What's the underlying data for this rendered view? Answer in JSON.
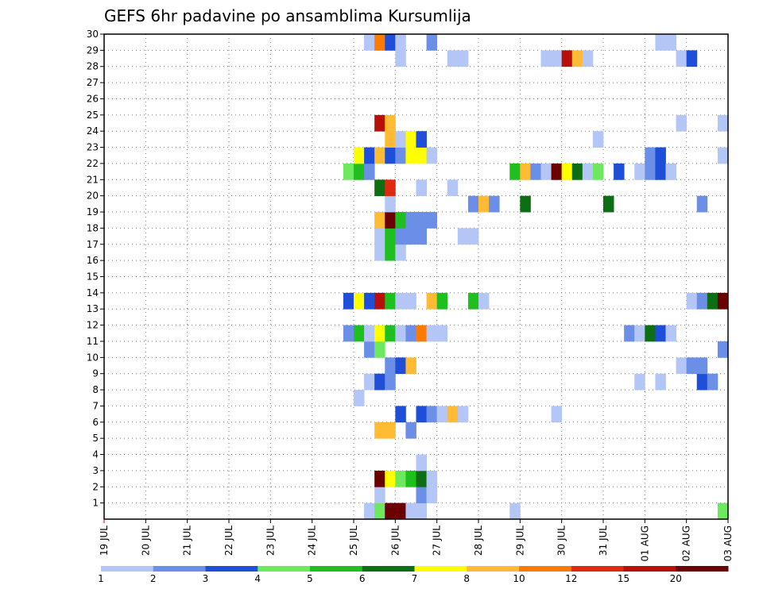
{
  "chart_data": {
    "type": "heatmap",
    "title": "GEFS 6hr padavine po ansamblima Kursumlija",
    "xlabel": "",
    "ylabel": "",
    "x_tick_labels": [
      "19 JUL",
      "20 JUL",
      "21 JUL",
      "22 JUL",
      "23 JUL",
      "24 JUL",
      "25 JUL",
      "26 JUL",
      "27 JUL",
      "28 JUL",
      "29 JUL",
      "30 JUL",
      "31 JUL",
      "01 AUG",
      "02 AUG",
      "03 AUG"
    ],
    "x_range": [
      0,
      15
    ],
    "x_step": 0.25,
    "y_range": [
      0,
      30
    ],
    "y_tick_labels": [
      "1",
      "2",
      "3",
      "4",
      "5",
      "6",
      "7",
      "8",
      "9",
      "10",
      "11",
      "12",
      "13",
      "14",
      "15",
      "16",
      "17",
      "18",
      "19",
      "20",
      "21",
      "22",
      "23",
      "24",
      "25",
      "26",
      "27",
      "28",
      "29",
      "30"
    ],
    "grid": true,
    "colorbar": {
      "labels": [
        "1",
        "2",
        "3",
        "4",
        "5",
        "6",
        "7",
        "8",
        "10",
        "12",
        "15",
        "20"
      ],
      "colors": [
        "#b4c6f6",
        "#6b8fe6",
        "#1f4fd8",
        "#6ee85e",
        "#1fbf1f",
        "#0e6e14",
        "#ffff00",
        "#ffbb33",
        "#ff7a00",
        "#e02a10",
        "#b80f0a",
        "#6b0000"
      ]
    },
    "cells": [
      [
        6.25,
        0,
        0
      ],
      [
        6.5,
        0,
        3
      ],
      [
        6.75,
        0,
        11
      ],
      [
        7.0,
        0,
        11
      ],
      [
        7.25,
        0,
        0
      ],
      [
        7.5,
        0,
        0
      ],
      [
        9.75,
        0,
        0
      ],
      [
        14.75,
        0,
        3
      ],
      [
        6.5,
        1,
        0
      ],
      [
        7.5,
        1,
        1
      ],
      [
        7.75,
        1,
        0
      ],
      [
        6.5,
        2,
        11
      ],
      [
        6.75,
        2,
        6
      ],
      [
        7.0,
        2,
        3
      ],
      [
        7.25,
        2,
        4
      ],
      [
        7.5,
        2,
        5
      ],
      [
        7.75,
        2,
        0
      ],
      [
        7.5,
        3,
        0
      ],
      [
        6.5,
        5,
        7
      ],
      [
        6.75,
        5,
        7
      ],
      [
        7.25,
        5,
        1
      ],
      [
        7.0,
        6,
        2
      ],
      [
        7.5,
        6,
        2
      ],
      [
        7.75,
        6,
        1
      ],
      [
        8.0,
        6,
        0
      ],
      [
        8.25,
        6,
        7
      ],
      [
        8.5,
        6,
        0
      ],
      [
        10.75,
        6,
        0
      ],
      [
        6.0,
        7,
        0
      ],
      [
        6.25,
        8,
        0
      ],
      [
        6.5,
        8,
        2
      ],
      [
        6.75,
        8,
        1
      ],
      [
        12.75,
        8,
        0
      ],
      [
        13.25,
        8,
        0
      ],
      [
        14.25,
        8,
        2
      ],
      [
        14.5,
        8,
        1
      ],
      [
        6.75,
        9,
        1
      ],
      [
        7.0,
        9,
        2
      ],
      [
        7.25,
        9,
        7
      ],
      [
        13.75,
        9,
        0
      ],
      [
        14.0,
        9,
        1
      ],
      [
        14.25,
        9,
        1
      ],
      [
        6.25,
        10,
        1
      ],
      [
        6.5,
        10,
        3
      ],
      [
        14.75,
        10,
        1
      ],
      [
        5.75,
        11,
        1
      ],
      [
        6.0,
        11,
        4
      ],
      [
        6.25,
        11,
        0
      ],
      [
        6.5,
        11,
        6
      ],
      [
        6.75,
        11,
        4
      ],
      [
        7.0,
        11,
        0
      ],
      [
        7.25,
        11,
        1
      ],
      [
        7.5,
        11,
        8
      ],
      [
        7.75,
        11,
        0
      ],
      [
        8.0,
        11,
        0
      ],
      [
        12.5,
        11,
        1
      ],
      [
        12.75,
        11,
        0
      ],
      [
        13.0,
        11,
        5
      ],
      [
        13.25,
        11,
        2
      ],
      [
        13.5,
        11,
        0
      ],
      [
        5.75,
        13,
        2
      ],
      [
        6.0,
        13,
        6
      ],
      [
        6.25,
        13,
        2
      ],
      [
        6.5,
        13,
        10
      ],
      [
        6.75,
        13,
        4
      ],
      [
        7.0,
        13,
        0
      ],
      [
        7.25,
        13,
        0
      ],
      [
        7.75,
        13,
        7
      ],
      [
        8.0,
        13,
        4
      ],
      [
        8.75,
        13,
        4
      ],
      [
        9.0,
        13,
        0
      ],
      [
        14.0,
        13,
        0
      ],
      [
        14.25,
        13,
        1
      ],
      [
        14.5,
        13,
        5
      ],
      [
        14.75,
        13,
        11
      ],
      [
        6.5,
        16,
        0
      ],
      [
        6.75,
        16,
        4
      ],
      [
        7.0,
        16,
        0
      ],
      [
        6.5,
        17,
        0
      ],
      [
        6.75,
        17,
        4
      ],
      [
        7.0,
        17,
        1
      ],
      [
        7.25,
        17,
        1
      ],
      [
        7.5,
        17,
        1
      ],
      [
        8.5,
        17,
        0
      ],
      [
        8.75,
        17,
        0
      ],
      [
        6.5,
        18,
        7
      ],
      [
        6.75,
        18,
        11
      ],
      [
        7.0,
        18,
        4
      ],
      [
        7.25,
        18,
        1
      ],
      [
        7.5,
        18,
        1
      ],
      [
        7.75,
        18,
        1
      ],
      [
        6.75,
        19,
        0
      ],
      [
        8.75,
        19,
        1
      ],
      [
        9.0,
        19,
        7
      ],
      [
        9.25,
        19,
        1
      ],
      [
        10.0,
        19,
        5
      ],
      [
        12.0,
        19,
        5
      ],
      [
        14.25,
        19,
        1
      ],
      [
        6.5,
        20,
        5
      ],
      [
        6.75,
        20,
        9
      ],
      [
        7.5,
        20,
        0
      ],
      [
        8.25,
        20,
        0
      ],
      [
        5.75,
        21,
        3
      ],
      [
        6.0,
        21,
        4
      ],
      [
        6.25,
        21,
        1
      ],
      [
        9.75,
        21,
        4
      ],
      [
        10.0,
        21,
        7
      ],
      [
        10.25,
        21,
        1
      ],
      [
        10.5,
        21,
        0
      ],
      [
        10.75,
        21,
        11
      ],
      [
        11.0,
        21,
        6
      ],
      [
        11.25,
        21,
        5
      ],
      [
        11.5,
        21,
        0
      ],
      [
        11.75,
        21,
        3
      ],
      [
        12.25,
        21,
        2
      ],
      [
        12.75,
        21,
        0
      ],
      [
        13.0,
        21,
        1
      ],
      [
        13.25,
        21,
        2
      ],
      [
        13.5,
        21,
        0
      ],
      [
        6.0,
        22,
        6
      ],
      [
        6.25,
        22,
        2
      ],
      [
        6.5,
        22,
        7
      ],
      [
        6.75,
        22,
        2
      ],
      [
        7.0,
        22,
        1
      ],
      [
        7.25,
        22,
        6
      ],
      [
        7.5,
        22,
        6
      ],
      [
        7.75,
        22,
        0
      ],
      [
        13.0,
        22,
        1
      ],
      [
        13.25,
        22,
        2
      ],
      [
        14.75,
        22,
        0
      ],
      [
        6.75,
        23,
        7
      ],
      [
        7.0,
        23,
        0
      ],
      [
        7.25,
        23,
        6
      ],
      [
        7.5,
        23,
        2
      ],
      [
        11.75,
        23,
        0
      ],
      [
        6.5,
        24,
        10
      ],
      [
        6.75,
        24,
        7
      ],
      [
        13.75,
        24,
        0
      ],
      [
        14.75,
        24,
        0
      ],
      [
        7.0,
        28,
        0
      ],
      [
        8.5,
        28,
        0
      ],
      [
        8.25,
        28,
        0
      ],
      [
        10.5,
        28,
        0
      ],
      [
        10.75,
        28,
        0
      ],
      [
        11.0,
        28,
        10
      ],
      [
        11.25,
        28,
        7
      ],
      [
        11.5,
        28,
        0
      ],
      [
        13.75,
        28,
        0
      ],
      [
        14.0,
        28,
        2
      ],
      [
        6.25,
        29,
        0
      ],
      [
        6.5,
        29,
        8
      ],
      [
        6.75,
        29,
        2
      ],
      [
        7.0,
        29,
        0
      ],
      [
        7.75,
        29,
        1
      ],
      [
        13.25,
        29,
        0
      ],
      [
        13.5,
        29,
        0
      ]
    ]
  }
}
